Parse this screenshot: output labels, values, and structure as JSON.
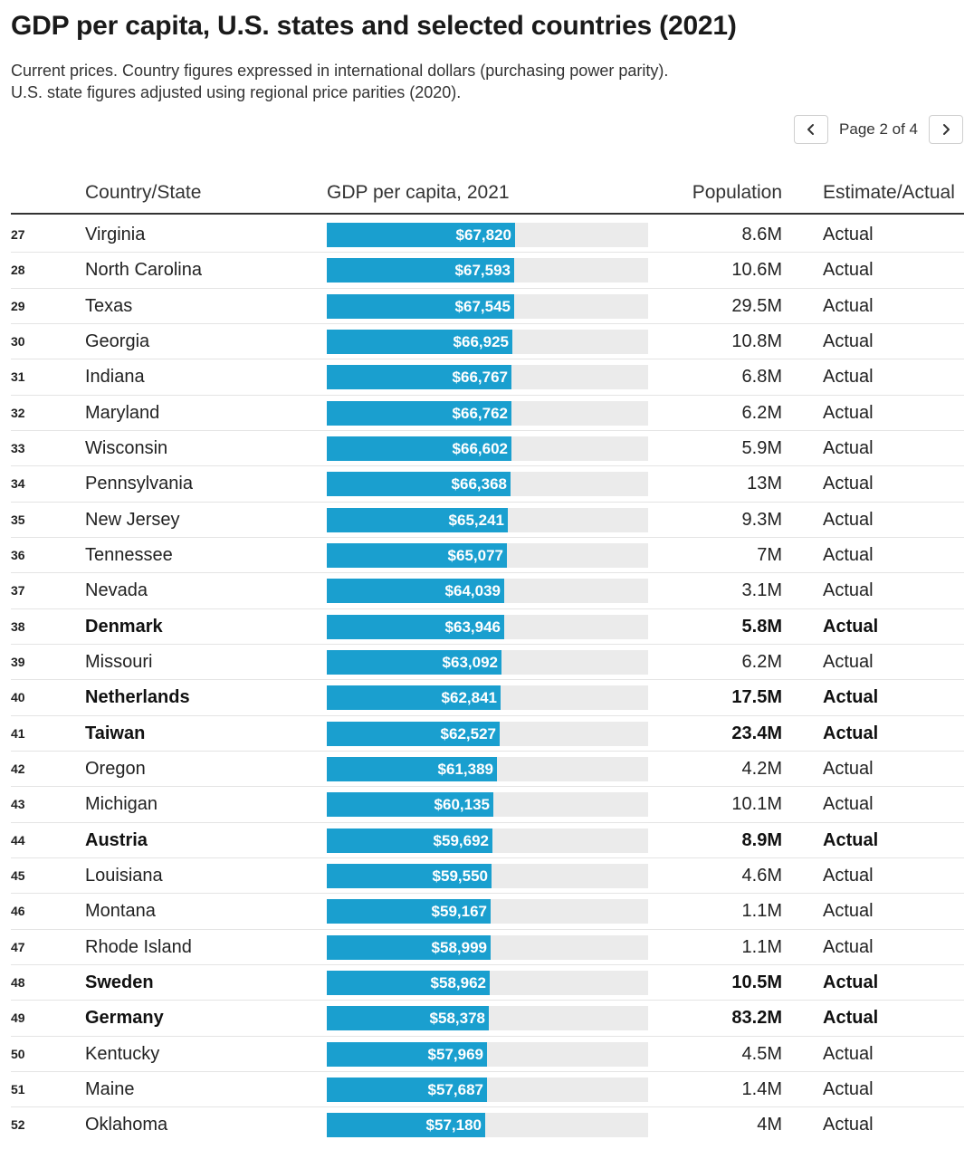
{
  "title": "GDP per capita, U.S. states and selected countries (2021)",
  "subtitle_line1": "Current prices. Country figures expressed in international dollars (purchasing power parity).",
  "subtitle_line2": "U.S. state figures adjusted using regional price parities (2020).",
  "pagination": {
    "label": "Page 2 of 4",
    "prev_icon": "chevron-left-icon",
    "next_icon": "chevron-right-icon"
  },
  "colors": {
    "bar": "#1a9fcf",
    "track": "#ebebeb"
  },
  "chart_data": {
    "type": "table",
    "columns": [
      "",
      "Country/State",
      "GDP per capita, 2021",
      "Population",
      "Estimate/Actual"
    ],
    "bar_max": 116000,
    "rows": [
      {
        "rank": "27",
        "name": "Virginia",
        "gdp": 67820,
        "gdp_label": "$67,820",
        "population": "8.6M",
        "status": "Actual",
        "country": false
      },
      {
        "rank": "28",
        "name": "North Carolina",
        "gdp": 67593,
        "gdp_label": "$67,593",
        "population": "10.6M",
        "status": "Actual",
        "country": false
      },
      {
        "rank": "29",
        "name": "Texas",
        "gdp": 67545,
        "gdp_label": "$67,545",
        "population": "29.5M",
        "status": "Actual",
        "country": false
      },
      {
        "rank": "30",
        "name": "Georgia",
        "gdp": 66925,
        "gdp_label": "$66,925",
        "population": "10.8M",
        "status": "Actual",
        "country": false
      },
      {
        "rank": "31",
        "name": "Indiana",
        "gdp": 66767,
        "gdp_label": "$66,767",
        "population": "6.8M",
        "status": "Actual",
        "country": false
      },
      {
        "rank": "32",
        "name": "Maryland",
        "gdp": 66762,
        "gdp_label": "$66,762",
        "population": "6.2M",
        "status": "Actual",
        "country": false
      },
      {
        "rank": "33",
        "name": "Wisconsin",
        "gdp": 66602,
        "gdp_label": "$66,602",
        "population": "5.9M",
        "status": "Actual",
        "country": false
      },
      {
        "rank": "34",
        "name": "Pennsylvania",
        "gdp": 66368,
        "gdp_label": "$66,368",
        "population": "13M",
        "status": "Actual",
        "country": false
      },
      {
        "rank": "35",
        "name": "New Jersey",
        "gdp": 65241,
        "gdp_label": "$65,241",
        "population": "9.3M",
        "status": "Actual",
        "country": false
      },
      {
        "rank": "36",
        "name": "Tennessee",
        "gdp": 65077,
        "gdp_label": "$65,077",
        "population": "7M",
        "status": "Actual",
        "country": false
      },
      {
        "rank": "37",
        "name": "Nevada",
        "gdp": 64039,
        "gdp_label": "$64,039",
        "population": "3.1M",
        "status": "Actual",
        "country": false
      },
      {
        "rank": "38",
        "name": "Denmark",
        "gdp": 63946,
        "gdp_label": "$63,946",
        "population": "5.8M",
        "status": "Actual",
        "country": true
      },
      {
        "rank": "39",
        "name": "Missouri",
        "gdp": 63092,
        "gdp_label": "$63,092",
        "population": "6.2M",
        "status": "Actual",
        "country": false
      },
      {
        "rank": "40",
        "name": "Netherlands",
        "gdp": 62841,
        "gdp_label": "$62,841",
        "population": "17.5M",
        "status": "Actual",
        "country": true
      },
      {
        "rank": "41",
        "name": "Taiwan",
        "gdp": 62527,
        "gdp_label": "$62,527",
        "population": "23.4M",
        "status": "Actual",
        "country": true
      },
      {
        "rank": "42",
        "name": "Oregon",
        "gdp": 61389,
        "gdp_label": "$61,389",
        "population": "4.2M",
        "status": "Actual",
        "country": false
      },
      {
        "rank": "43",
        "name": "Michigan",
        "gdp": 60135,
        "gdp_label": "$60,135",
        "population": "10.1M",
        "status": "Actual",
        "country": false
      },
      {
        "rank": "44",
        "name": "Austria",
        "gdp": 59692,
        "gdp_label": "$59,692",
        "population": "8.9M",
        "status": "Actual",
        "country": true
      },
      {
        "rank": "45",
        "name": "Louisiana",
        "gdp": 59550,
        "gdp_label": "$59,550",
        "population": "4.6M",
        "status": "Actual",
        "country": false
      },
      {
        "rank": "46",
        "name": "Montana",
        "gdp": 59167,
        "gdp_label": "$59,167",
        "population": "1.1M",
        "status": "Actual",
        "country": false
      },
      {
        "rank": "47",
        "name": "Rhode Island",
        "gdp": 58999,
        "gdp_label": "$58,999",
        "population": "1.1M",
        "status": "Actual",
        "country": false
      },
      {
        "rank": "48",
        "name": "Sweden",
        "gdp": 58962,
        "gdp_label": "$58,962",
        "population": "10.5M",
        "status": "Actual",
        "country": true
      },
      {
        "rank": "49",
        "name": "Germany",
        "gdp": 58378,
        "gdp_label": "$58,378",
        "population": "83.2M",
        "status": "Actual",
        "country": true
      },
      {
        "rank": "50",
        "name": "Kentucky",
        "gdp": 57969,
        "gdp_label": "$57,969",
        "population": "4.5M",
        "status": "Actual",
        "country": false
      },
      {
        "rank": "51",
        "name": "Maine",
        "gdp": 57687,
        "gdp_label": "$57,687",
        "population": "1.4M",
        "status": "Actual",
        "country": false
      },
      {
        "rank": "52",
        "name": "Oklahoma",
        "gdp": 57180,
        "gdp_label": "$57,180",
        "population": "4M",
        "status": "Actual",
        "country": false
      }
    ]
  }
}
